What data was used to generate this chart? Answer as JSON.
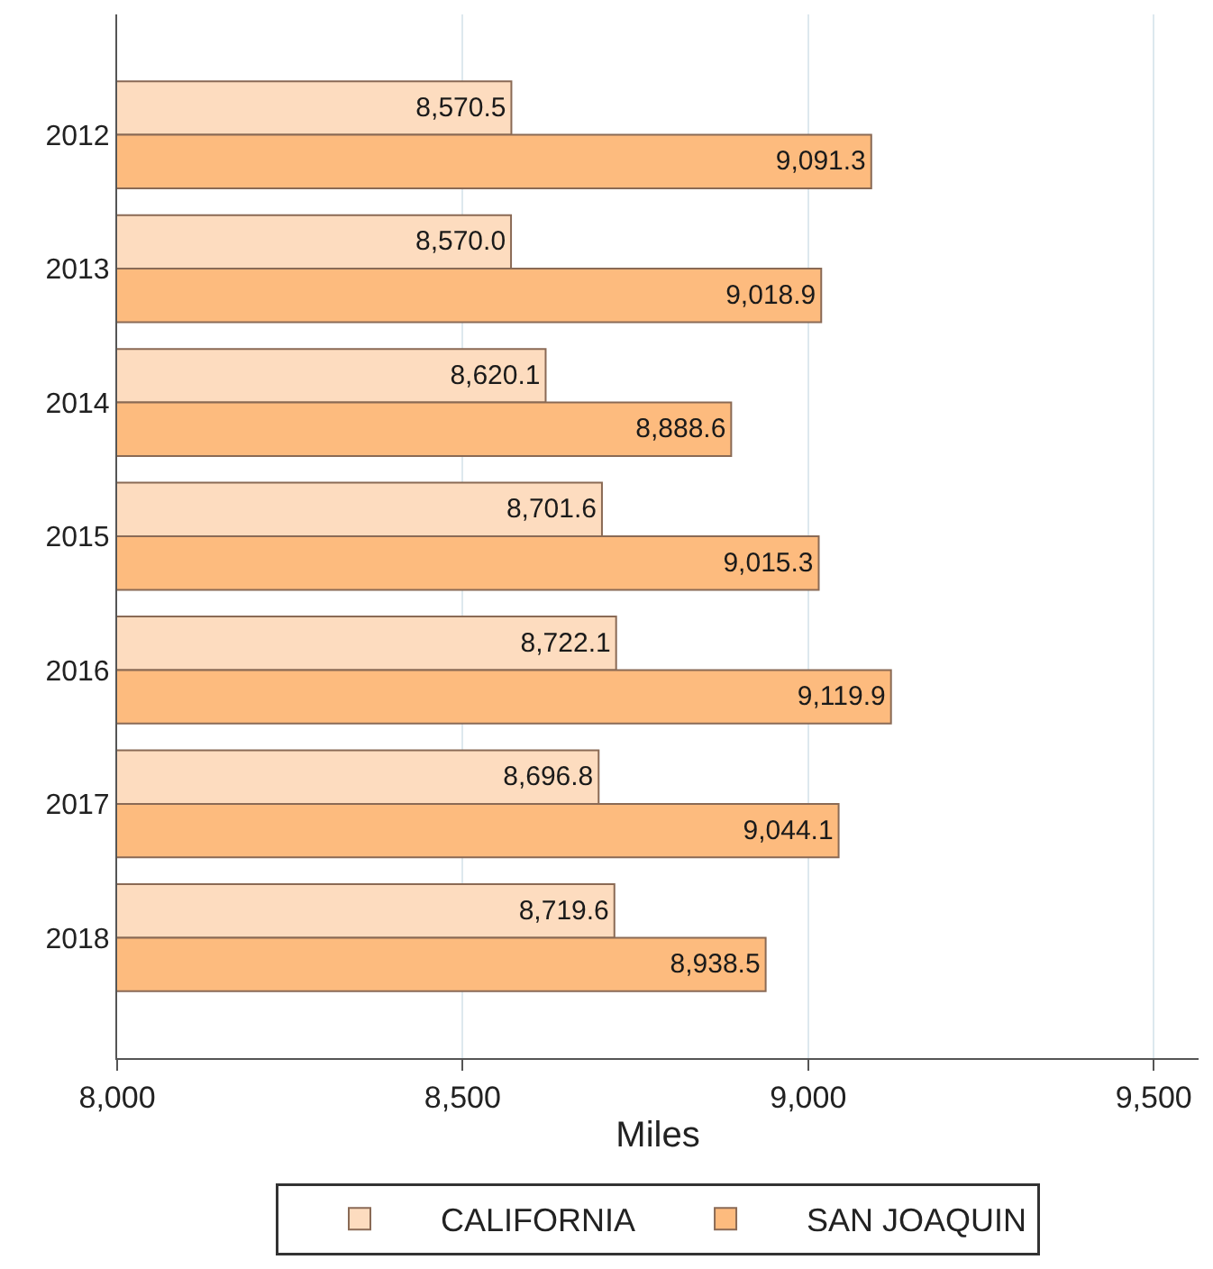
{
  "chart_data": {
    "type": "bar",
    "orientation": "horizontal",
    "xlabel": "Miles",
    "categories": [
      "2012",
      "2013",
      "2014",
      "2015",
      "2016",
      "2017",
      "2018"
    ],
    "series": [
      {
        "name": "CALIFORNIA",
        "color": "#fddcbf",
        "values": [
          8570.5,
          8570.0,
          8620.1,
          8701.6,
          8722.1,
          8696.8,
          8719.6
        ],
        "value_labels": [
          "8,570.5",
          "8,570.0",
          "8,620.1",
          "8,701.6",
          "8,722.1",
          "8,696.8",
          "8,719.6"
        ]
      },
      {
        "name": "SAN JOAQUIN",
        "color": "#fdbb7e",
        "values": [
          9091.3,
          9018.9,
          8888.6,
          9015.3,
          9119.9,
          9044.1,
          8938.5
        ],
        "value_labels": [
          "9,091.3",
          "9,018.9",
          "8,888.6",
          "9,015.3",
          "9,119.9",
          "9,044.1",
          "8,938.5"
        ]
      }
    ],
    "xlim": [
      8000,
      9565
    ],
    "xticks": [
      {
        "value": 8000,
        "label": "8,000"
      },
      {
        "value": 8500,
        "label": "8,500"
      },
      {
        "value": 9000,
        "label": "9,000"
      },
      {
        "value": 9500,
        "label": "9,500"
      }
    ],
    "grid": "x",
    "legend": "bottom"
  }
}
